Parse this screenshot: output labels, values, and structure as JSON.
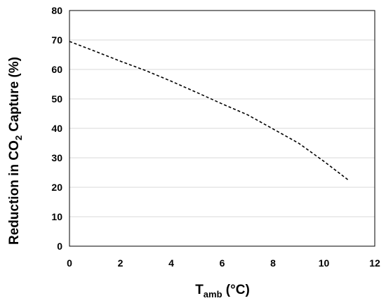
{
  "chart_data": {
    "type": "line",
    "title": "",
    "xlabel": {
      "main": "T",
      "sub": "amb",
      "suffix": " (°C)"
    },
    "ylabel": {
      "prefix": "Reduction in CO",
      "sub": "2",
      "suffix": " Capture (%)"
    },
    "xlim": [
      0,
      12
    ],
    "ylim": [
      0,
      80
    ],
    "xticks": [
      0,
      2,
      4,
      6,
      8,
      10,
      12
    ],
    "yticks": [
      0,
      10,
      20,
      30,
      40,
      50,
      60,
      70,
      80
    ],
    "grid": {
      "horizontal": true,
      "vertical": false
    },
    "legend": "none",
    "series": [
      {
        "line_style": "dashed",
        "color": "#000000",
        "x": [
          0,
          1,
          2,
          3,
          4,
          5,
          6,
          7,
          8,
          9,
          10,
          11
        ],
        "y": [
          69.5,
          66.2,
          62.8,
          59.6,
          56.0,
          52.2,
          48.3,
          44.6,
          39.8,
          35.0,
          28.8,
          22.2
        ]
      }
    ]
  },
  "colors": {
    "grid": "#d9d9d9",
    "axis": "#000000",
    "line": "#000000"
  }
}
